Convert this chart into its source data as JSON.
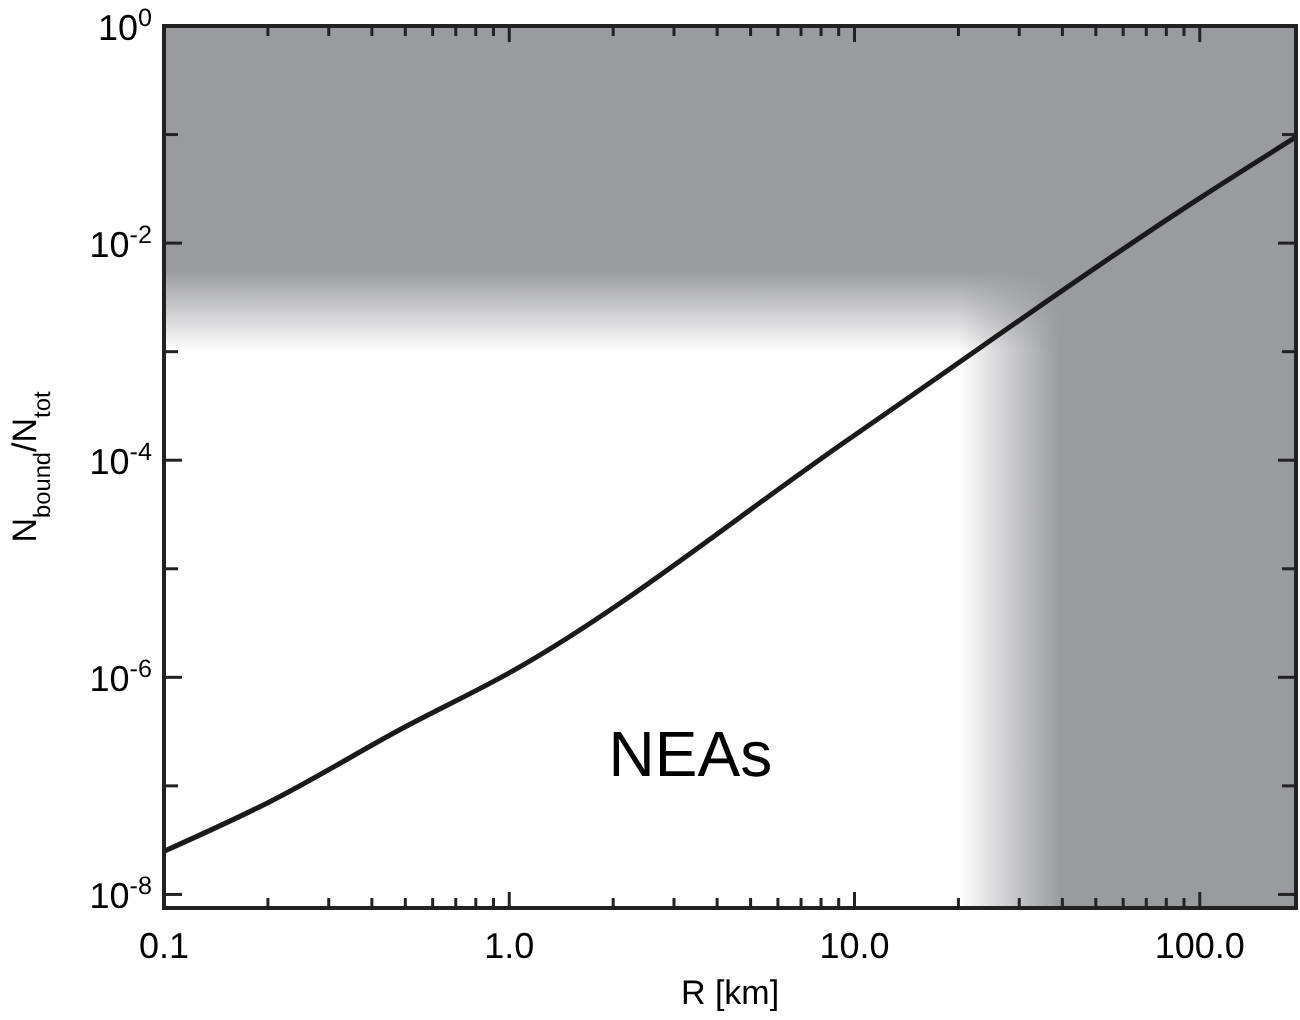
{
  "chart_data": {
    "type": "line",
    "xlabel": "R [km]",
    "ylabel": "N$_{bound}$/N$_{tot}$",
    "log": "xy",
    "line_style": "solid",
    "marker": "none",
    "x": [
      0.1,
      0.2,
      0.5,
      1,
      10,
      100,
      190
    ],
    "series": [
      {
        "color": "#1a1a1a",
        "values": [
          2.5e-08,
          7e-08,
          3.5e-07,
          1.1e-06,
          0.00017,
          0.026,
          0.095
        ]
      }
    ],
    "xlim": [
      0.1,
      190
    ],
    "ylim": [
      7.5e-09,
      1
    ],
    "xticks": [
      {
        "value": 0.1,
        "label": "0.1"
      },
      {
        "value": 0.2,
        "label": null
      },
      {
        "value": 0.3,
        "label": null
      },
      {
        "value": 0.4,
        "label": null
      },
      {
        "value": 0.5,
        "label": null
      },
      {
        "value": 0.6,
        "label": null
      },
      {
        "value": 0.7,
        "label": null
      },
      {
        "value": 0.8,
        "label": null
      },
      {
        "value": 0.9,
        "label": null
      },
      {
        "value": 1,
        "label": "1.0"
      },
      {
        "value": 2,
        "label": null
      },
      {
        "value": 3,
        "label": null
      },
      {
        "value": 4,
        "label": null
      },
      {
        "value": 5,
        "label": null
      },
      {
        "value": 6,
        "label": null
      },
      {
        "value": 7,
        "label": null
      },
      {
        "value": 8,
        "label": null
      },
      {
        "value": 9,
        "label": null
      },
      {
        "value": 10,
        "label": "10.0"
      },
      {
        "value": 20,
        "label": null
      },
      {
        "value": 30,
        "label": null
      },
      {
        "value": 40,
        "label": null
      },
      {
        "value": 50,
        "label": null
      },
      {
        "value": 60,
        "label": null
      },
      {
        "value": 70,
        "label": null
      },
      {
        "value": 80,
        "label": null
      },
      {
        "value": 90,
        "label": null
      },
      {
        "value": 100,
        "label": "100.0"
      }
    ],
    "yticks": [
      {
        "value": 1,
        "label": "10$^{0}$"
      },
      {
        "value": 0.1,
        "label": null
      },
      {
        "value": 0.01,
        "label": "10$^{-2}$"
      },
      {
        "value": 0.001,
        "label": null
      },
      {
        "value": 0.0001,
        "label": "10$^{-4}$"
      },
      {
        "value": 1e-05,
        "label": null
      },
      {
        "value": 1e-06,
        "label": "10$^{-6}$"
      },
      {
        "value": 1e-07,
        "label": null
      },
      {
        "value": 1e-08,
        "label": "10$^{-8}$"
      }
    ],
    "bands": [
      {
        "axis": "y",
        "from": 0.001,
        "to": 1,
        "color": "#9a9b9f"
      },
      {
        "axis": "x",
        "from": 20,
        "to": 190,
        "color": "#9a9b9f"
      }
    ],
    "annotations": [
      "NEAs"
    ]
  }
}
